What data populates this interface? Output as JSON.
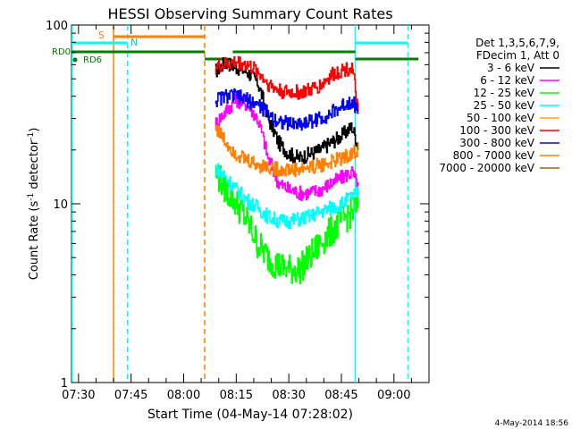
{
  "chart_data": {
    "type": "line",
    "title": "HESSI Observing Summary Count Rates",
    "xlabel": "Start Time (04-May-14 07:28:02)",
    "ylabel_main": "Count Rate (s",
    "ylabel_sup1": "-1",
    "ylabel_mid": " detector",
    "ylabel_sup2": "-1",
    "ylabel_end": ")",
    "yscale": "log",
    "ylim": [
      1,
      100
    ],
    "xlim": [
      "07:28",
      "09:10"
    ],
    "x_ticks": [
      "07:30",
      "07:45",
      "08:00",
      "08:15",
      "08:30",
      "08:45",
      "09:00"
    ],
    "y_ticks": [
      "1",
      "10",
      "100"
    ],
    "y_tick_values": [
      1,
      10,
      100
    ],
    "legend_header": [
      "Det 1,3,5,6,7,9,",
      "FDecim 1, Att 0"
    ],
    "legend_position": "right",
    "series": [
      {
        "name": "3 - 6 keV",
        "color": "#000000",
        "x": [
          "08:09",
          "08:12",
          "08:15",
          "08:18",
          "08:21",
          "08:24",
          "08:27",
          "08:30",
          "08:33",
          "08:36",
          "08:39",
          "08:42",
          "08:45",
          "08:48",
          "08:50"
        ],
        "values": [
          55,
          62,
          58,
          55,
          48,
          30,
          22,
          19,
          18,
          19,
          20,
          22,
          24,
          27,
          20
        ]
      },
      {
        "name": "6 - 12 keV",
        "color": "#ff00ff",
        "x": [
          "08:09",
          "08:12",
          "08:15",
          "08:18",
          "08:21",
          "08:24",
          "08:27",
          "08:30",
          "08:33",
          "08:36",
          "08:39",
          "08:42",
          "08:45",
          "08:48",
          "08:50"
        ],
        "values": [
          28,
          33,
          38,
          36,
          30,
          18,
          13,
          12,
          11.5,
          11.5,
          12,
          13,
          14,
          15,
          12
        ]
      },
      {
        "name": "12 - 25 keV",
        "color": "#00ff00",
        "x": [
          "08:09",
          "08:12",
          "08:15",
          "08:18",
          "08:21",
          "08:24",
          "08:27",
          "08:30",
          "08:33",
          "08:36",
          "08:39",
          "08:42",
          "08:45",
          "08:48",
          "08:50"
        ],
        "values": [
          15,
          12,
          10,
          8,
          6,
          5,
          4.5,
          4.3,
          4.3,
          5,
          6,
          7,
          8,
          9,
          10
        ]
      },
      {
        "name": "25 - 50 keV",
        "color": "#00ffff",
        "x": [
          "08:09",
          "08:12",
          "08:15",
          "08:18",
          "08:21",
          "08:24",
          "08:27",
          "08:30",
          "08:33",
          "08:36",
          "08:39",
          "08:42",
          "08:45",
          "08:48",
          "08:50"
        ],
        "values": [
          16,
          14,
          12,
          10.5,
          9.5,
          8.5,
          8,
          8,
          8.2,
          8.5,
          9,
          9.5,
          10,
          11,
          11.5
        ]
      },
      {
        "name": "50 - 100 keV",
        "color": "#ffa500",
        "x": [],
        "values": []
      },
      {
        "name": "100 - 300 keV",
        "color": "#ff0000",
        "x": [
          "08:09",
          "08:12",
          "08:15",
          "08:18",
          "08:21",
          "08:24",
          "08:27",
          "08:30",
          "08:33",
          "08:36",
          "08:39",
          "08:42",
          "08:45",
          "08:48",
          "08:50"
        ],
        "values": [
          58,
          60,
          62,
          60,
          55,
          47,
          43,
          42,
          42,
          43,
          46,
          52,
          56,
          58,
          27
        ]
      },
      {
        "name": "300 - 800 keV",
        "color": "#0000ff",
        "x": [
          "08:09",
          "08:12",
          "08:15",
          "08:18",
          "08:21",
          "08:24",
          "08:27",
          "08:30",
          "08:33",
          "08:36",
          "08:39",
          "08:42",
          "08:45",
          "08:48",
          "08:50"
        ],
        "values": [
          38,
          40,
          40,
          38,
          36,
          32,
          29,
          28,
          28,
          29,
          30,
          32,
          35,
          38,
          32
        ]
      },
      {
        "name": "800 - 7000 keV",
        "color": "#ff8000",
        "x": [
          "08:09",
          "08:12",
          "08:15",
          "08:18",
          "08:21",
          "08:24",
          "08:27",
          "08:30",
          "08:33",
          "08:36",
          "08:39",
          "08:42",
          "08:45",
          "08:48",
          "08:50"
        ],
        "values": [
          27,
          22,
          19,
          17.5,
          16.5,
          16,
          15.5,
          15.5,
          15.5,
          16,
          16.5,
          17,
          18,
          19,
          20
        ]
      },
      {
        "name": "7000 - 20000 keV",
        "color": "#996600",
        "x": [],
        "values": []
      }
    ],
    "flags": {
      "saa_label": "S",
      "night_label": "N",
      "rd0_label": "RD0",
      "rd6_label": "RD6"
    },
    "colors": {
      "saa": "#ff7f00",
      "night": "#00ffff",
      "rd": "#007f00"
    },
    "footer_date": "4-May-2014 18:56"
  }
}
